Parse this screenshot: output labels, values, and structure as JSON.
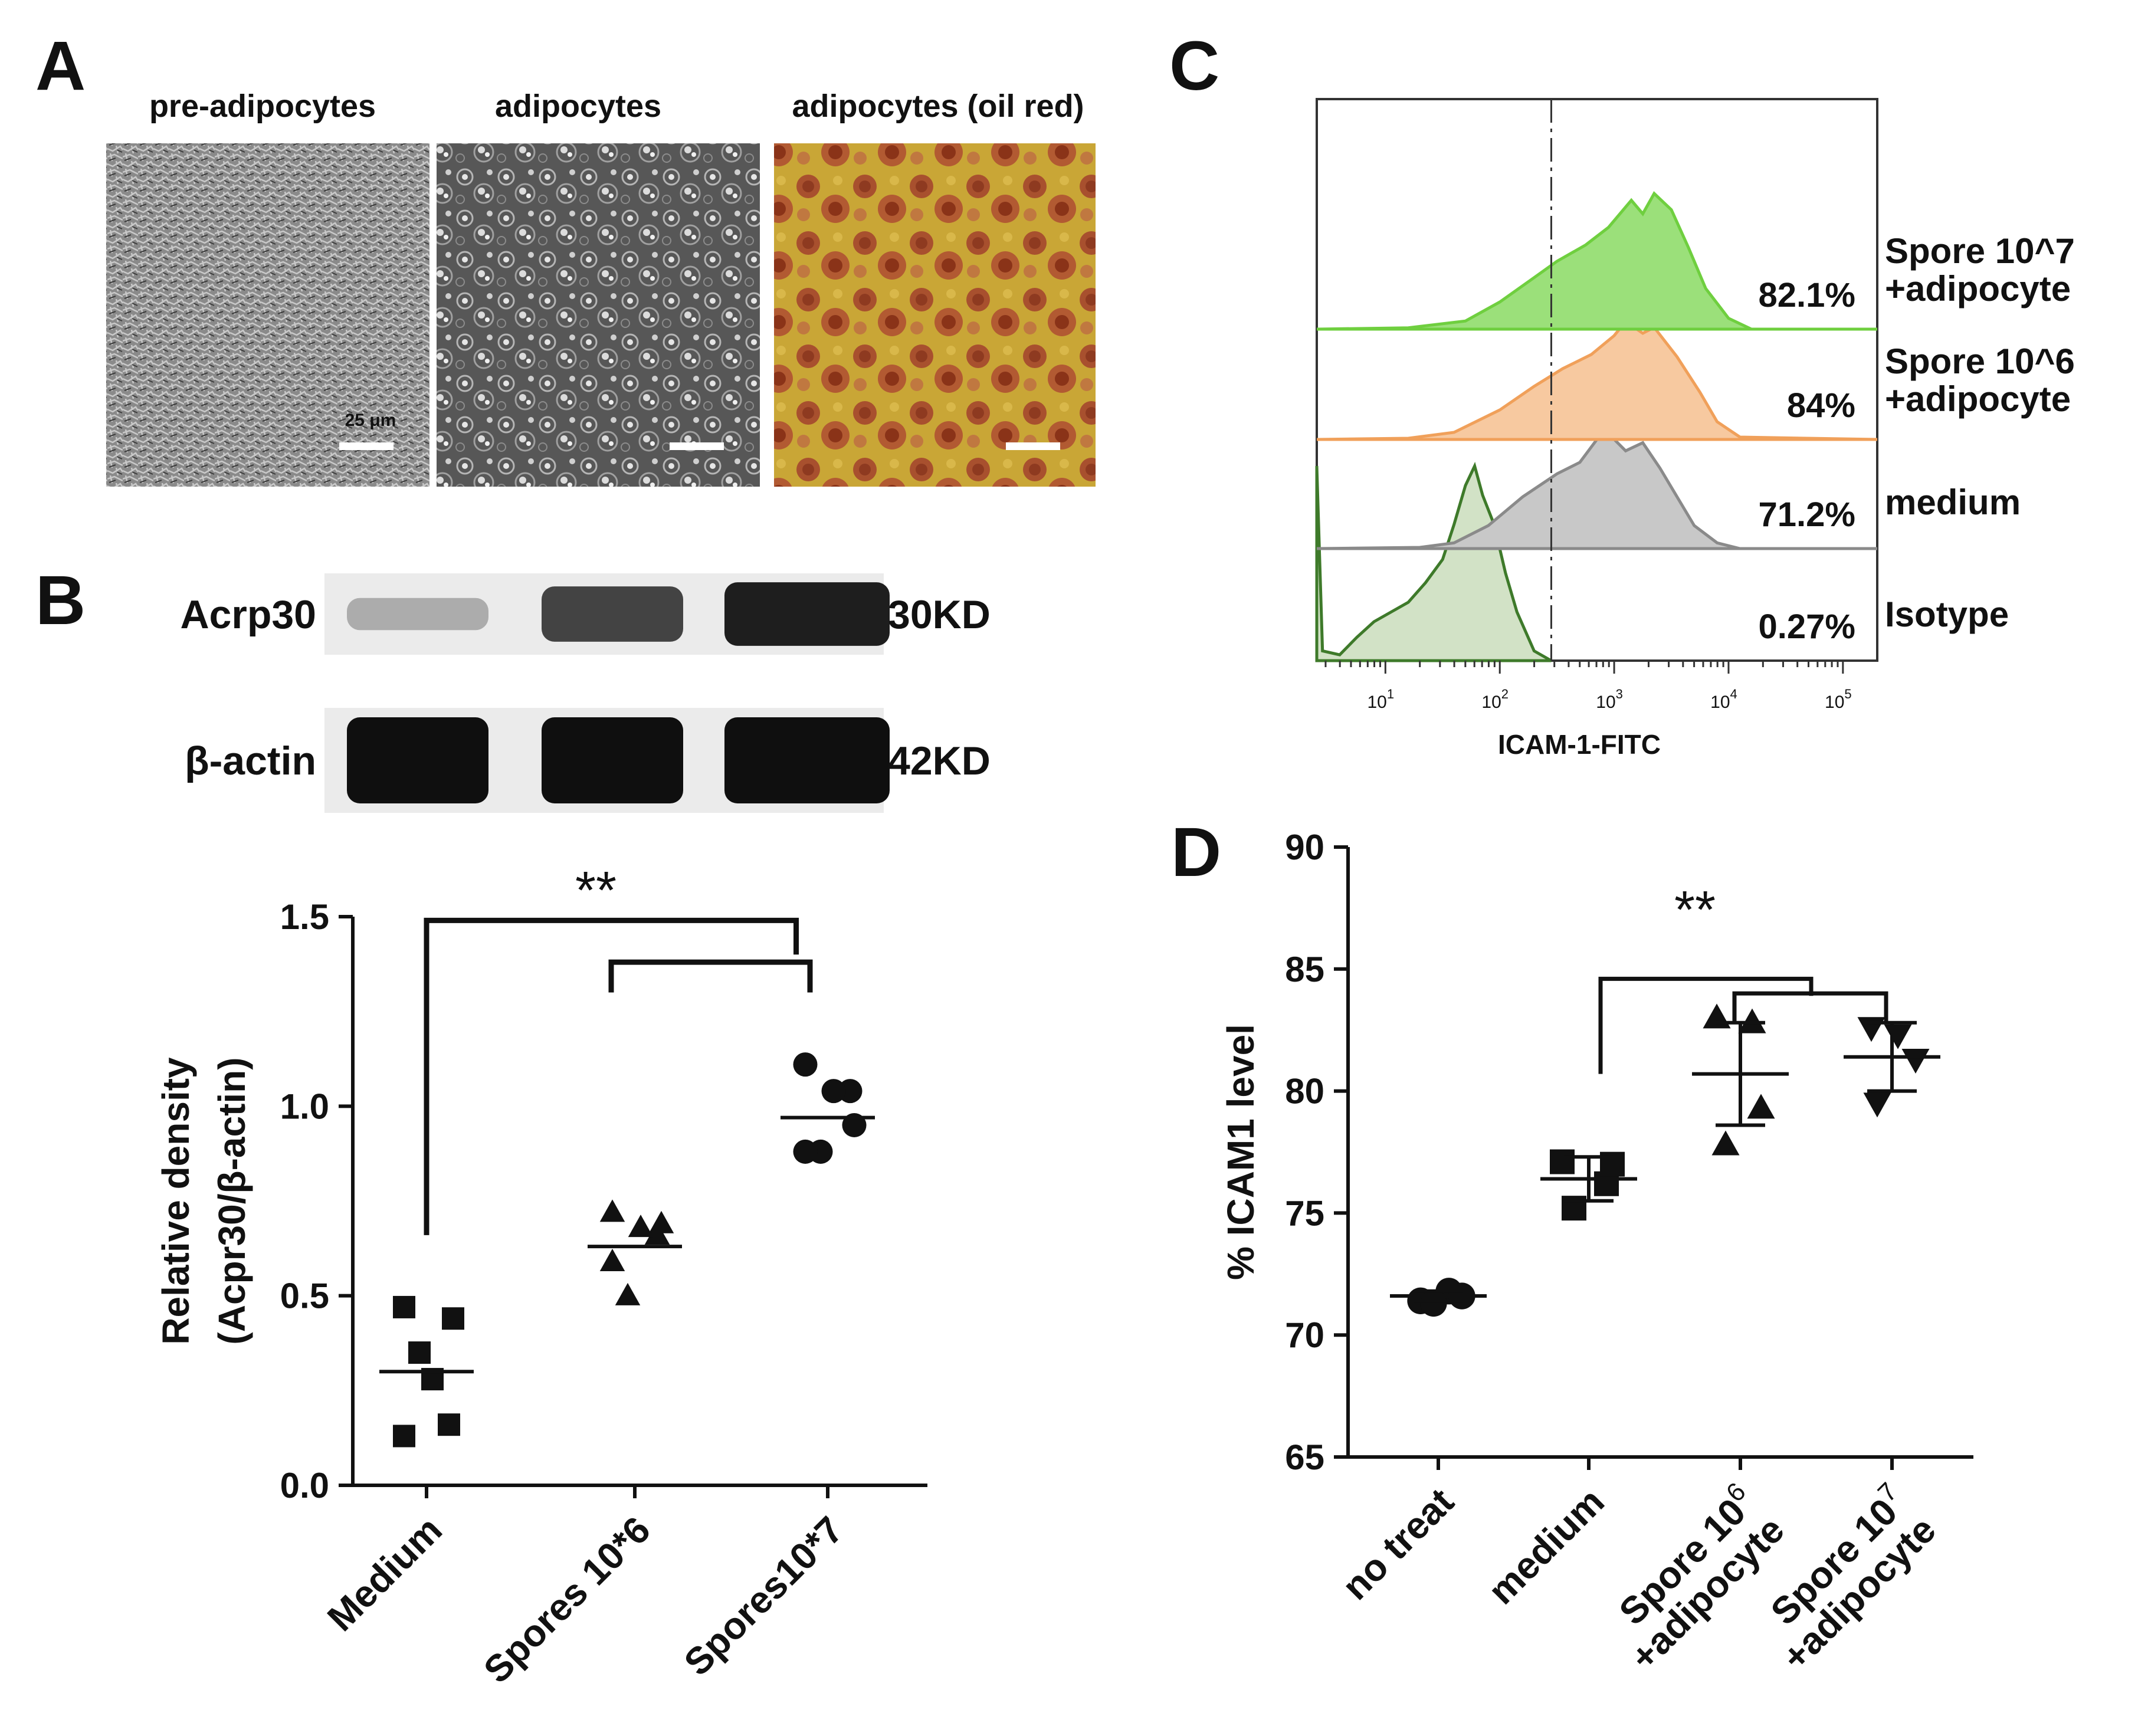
{
  "panel_labels": {
    "a": "A",
    "b": "B",
    "c": "C",
    "d": "D"
  },
  "micrographs": {
    "titles": [
      "pre-adipocytes",
      "adipocytes",
      "adipocytes (oil red)"
    ],
    "scale_bar_label": "25 μm"
  },
  "western_blot": {
    "bands": [
      {
        "protein": "Acrp30",
        "size": "30KD",
        "intensities": [
          0.15,
          0.72,
          0.92
        ]
      },
      {
        "protein": "β-actin",
        "size": "42KD",
        "intensities": [
          1.0,
          1.0,
          1.0
        ]
      }
    ]
  },
  "colors": {
    "ink": "#111111",
    "green": "#9be07a",
    "green_line": "#6fcf3f",
    "orange": "#f7c9a0",
    "orange_line": "#f0a05a",
    "gray": "#c8c8c8",
    "gray_line": "#8a8a8a",
    "isotype": "#d2e2c6",
    "isotype_line": "#3e7a2a"
  },
  "chart_data": [
    {
      "panel": "B",
      "type": "scatter",
      "ylabel": [
        "Relative density",
        "(Acpr30/β-actin)"
      ],
      "ylim": [
        0,
        1.5
      ],
      "yticks": [
        "0.0",
        "0.5",
        "1.0",
        "1.5"
      ],
      "categories": [
        "Medium",
        "Spores 10*6",
        "Spores10*7"
      ],
      "markers": [
        "square",
        "triangle",
        "circle"
      ],
      "points": [
        [
          0.13,
          0.16,
          0.35,
          0.44,
          0.47,
          0.28
        ],
        [
          0.72,
          0.66,
          0.5,
          0.69,
          0.59,
          0.68
        ],
        [
          1.11,
          1.04,
          0.88,
          0.95,
          0.88,
          1.04
        ]
      ],
      "means": [
        0.3,
        0.63,
        0.97
      ],
      "significance": "**"
    },
    {
      "panel": "C",
      "type": "area",
      "xlabel": "ICAM-1-FITC",
      "xticks": [
        {
          "base": "10",
          "exp": "1"
        },
        {
          "base": "10",
          "exp": "2"
        },
        {
          "base": "10",
          "exp": "3"
        },
        {
          "base": "10",
          "exp": "4"
        },
        {
          "base": "10",
          "exp": "5"
        }
      ],
      "xlim_log10": [
        0.4,
        5.3
      ],
      "gate_log10": 2.45,
      "series": [
        {
          "name": "Isotype",
          "label": [
            "Isotype"
          ],
          "percent": "0.27%",
          "fill": "#d2e2c6",
          "line": "#3e7a2a",
          "profile": [
            [
              0.4,
              1.0
            ],
            [
              0.45,
              0.05
            ],
            [
              0.6,
              0.03
            ],
            [
              0.75,
              0.12
            ],
            [
              0.9,
              0.2
            ],
            [
              1.05,
              0.25
            ],
            [
              1.2,
              0.3
            ],
            [
              1.35,
              0.4
            ],
            [
              1.5,
              0.52
            ],
            [
              1.6,
              0.7
            ],
            [
              1.7,
              0.9
            ],
            [
              1.78,
              1.0
            ],
            [
              1.85,
              0.85
            ],
            [
              1.95,
              0.7
            ],
            [
              2.05,
              0.45
            ],
            [
              2.15,
              0.25
            ],
            [
              2.3,
              0.05
            ],
            [
              2.45,
              0.0
            ]
          ]
        },
        {
          "name": "medium",
          "label": [
            "medium"
          ],
          "percent": "71.2%",
          "fill": "#c8c8c8",
          "line": "#8a8a8a",
          "profile": [
            [
              0.4,
              0.0
            ],
            [
              1.3,
              0.01
            ],
            [
              1.6,
              0.05
            ],
            [
              1.9,
              0.2
            ],
            [
              2.2,
              0.45
            ],
            [
              2.5,
              0.65
            ],
            [
              2.7,
              0.75
            ],
            [
              2.85,
              0.95
            ],
            [
              2.95,
              1.0
            ],
            [
              3.1,
              0.85
            ],
            [
              3.25,
              0.92
            ],
            [
              3.4,
              0.7
            ],
            [
              3.55,
              0.45
            ],
            [
              3.7,
              0.2
            ],
            [
              3.9,
              0.05
            ],
            [
              4.1,
              0.0
            ],
            [
              5.3,
              0.0
            ]
          ]
        },
        {
          "name": "Spore 10^6 +adipocyte",
          "label": [
            "Spore 10^6",
            "+adipocyte"
          ],
          "percent": "84%",
          "fill": "#f7c9a0",
          "line": "#f0a05a",
          "profile": [
            [
              0.4,
              0.0
            ],
            [
              1.2,
              0.01
            ],
            [
              1.6,
              0.06
            ],
            [
              2.0,
              0.25
            ],
            [
              2.3,
              0.45
            ],
            [
              2.55,
              0.6
            ],
            [
              2.8,
              0.72
            ],
            [
              3.0,
              0.88
            ],
            [
              3.1,
              1.0
            ],
            [
              3.25,
              0.9
            ],
            [
              3.35,
              0.95
            ],
            [
              3.55,
              0.7
            ],
            [
              3.75,
              0.4
            ],
            [
              3.9,
              0.15
            ],
            [
              4.1,
              0.02
            ],
            [
              5.3,
              0.0
            ]
          ]
        },
        {
          "name": "Spore 10^7 +adipocyte",
          "label": [
            "Spore 10^7",
            "+adipocyte"
          ],
          "percent": "82.1%",
          "fill": "#9be07a",
          "line": "#6fcf3f",
          "profile": [
            [
              0.4,
              0.0
            ],
            [
              1.2,
              0.01
            ],
            [
              1.7,
              0.06
            ],
            [
              2.0,
              0.2
            ],
            [
              2.3,
              0.38
            ],
            [
              2.5,
              0.5
            ],
            [
              2.75,
              0.62
            ],
            [
              2.95,
              0.75
            ],
            [
              3.15,
              0.95
            ],
            [
              3.25,
              0.85
            ],
            [
              3.35,
              1.0
            ],
            [
              3.5,
              0.88
            ],
            [
              3.65,
              0.6
            ],
            [
              3.8,
              0.3
            ],
            [
              4.0,
              0.08
            ],
            [
              4.2,
              0.0
            ],
            [
              5.3,
              0.0
            ]
          ]
        }
      ]
    },
    {
      "panel": "D",
      "type": "scatter",
      "ylabel": "% ICAM1 level",
      "ylim": [
        65,
        90
      ],
      "yticks": [
        "65",
        "70",
        "75",
        "80",
        "85",
        "90"
      ],
      "categories": [
        {
          "line1": "no treat",
          "line2": "",
          "sup": ""
        },
        {
          "line1": "medium",
          "line2": "",
          "sup": ""
        },
        {
          "line1": "Spore 10",
          "line2": "+adipocyte",
          "sup": "6"
        },
        {
          "line1": "Spore 10",
          "line2": "+adipocyte",
          "sup": "7"
        }
      ],
      "markers": [
        "circle",
        "square",
        "triangle",
        "triangle-down"
      ],
      "points": [
        [
          71.4,
          71.8,
          71.6,
          71.3
        ],
        [
          77.1,
          76.2,
          75.2,
          77.0
        ],
        [
          83.0,
          79.3,
          82.8,
          77.8
        ],
        [
          82.6,
          81.3,
          82.3,
          79.5
        ]
      ],
      "means": [
        71.6,
        76.4,
        80.7,
        81.4
      ],
      "sd": [
        0.2,
        0.9,
        2.1,
        1.4
      ],
      "significance": "**"
    }
  ]
}
